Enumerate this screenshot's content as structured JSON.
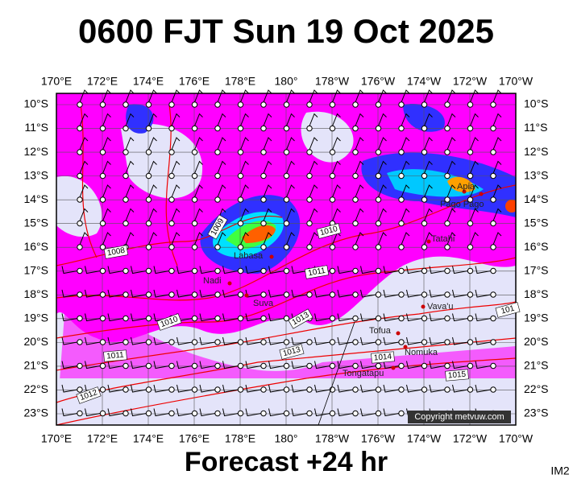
{
  "header": {
    "title": "0600 FJT Sun 19 Oct 2025"
  },
  "map": {
    "lon_labels": [
      "170°E",
      "172°E",
      "174°E",
      "176°E",
      "178°E",
      "180°",
      "178°W",
      "176°W",
      "174°W",
      "172°W",
      "170°W"
    ],
    "lat_labels": [
      "10°S",
      "11°S",
      "12°S",
      "13°S",
      "14°S",
      "15°S",
      "16°S",
      "17°S",
      "18°S",
      "19°S",
      "20°S",
      "21°S",
      "22°S",
      "23°S"
    ],
    "places": [
      "Apia",
      "Pago Pago",
      "Tatahi",
      "Labasa",
      "Nadi",
      "Suva",
      "Vava'u",
      "Tofua",
      "Nomuka",
      "Tongatapu"
    ],
    "isobars": [
      "1008",
      "1009",
      "1010",
      "1011",
      "1010",
      "1013",
      "1013",
      "1011",
      "1014",
      "1015",
      "1012",
      "101"
    ],
    "copyright": "Copyright metvuw.com"
  },
  "footer": {
    "forecast": "Forecast +24 hr",
    "code": "IM2"
  }
}
